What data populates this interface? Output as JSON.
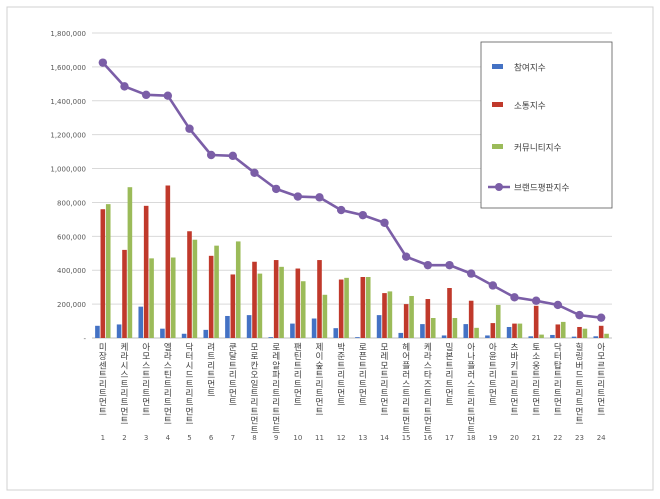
{
  "chart_data": {
    "type": "bar",
    "categories": [
      {
        "num": "1",
        "name": "미장센트리트먼트"
      },
      {
        "num": "2",
        "name": "케라시스트리트먼트"
      },
      {
        "num": "3",
        "name": "아모스트리트먼트"
      },
      {
        "num": "4",
        "name": "엘라스틴트리트먼트"
      },
      {
        "num": "5",
        "name": "닥터시드트리트먼트"
      },
      {
        "num": "6",
        "name": "려트리트먼트"
      },
      {
        "num": "7",
        "name": "쿤달트리트먼트"
      },
      {
        "num": "8",
        "name": "모로칸오일트리트먼트"
      },
      {
        "num": "9",
        "name": "로레알파리트리트먼트"
      },
      {
        "num": "10",
        "name": "팬틴트리트먼트"
      },
      {
        "num": "11",
        "name": "제이숲트리트먼트"
      },
      {
        "num": "12",
        "name": "박준트리트먼트"
      },
      {
        "num": "13",
        "name": "로픈트리트먼트"
      },
      {
        "num": "14",
        "name": "모레모트리트먼트"
      },
      {
        "num": "15",
        "name": "헤어플러스트리트먼트"
      },
      {
        "num": "16",
        "name": "케라스타즈트리트먼트"
      },
      {
        "num": "17",
        "name": "밀본트리트먼트"
      },
      {
        "num": "18",
        "name": "아나플러스트리트먼트"
      },
      {
        "num": "19",
        "name": "아윤트리트먼트"
      },
      {
        "num": "20",
        "name": "츠바키트리트먼트"
      },
      {
        "num": "21",
        "name": "토소웅트리트먼트"
      },
      {
        "num": "22",
        "name": "닥터탑트리트먼트"
      },
      {
        "num": "23",
        "name": "힐링버드트리트먼트"
      },
      {
        "num": "24",
        "name": "아모르트리트먼트"
      }
    ],
    "series": [
      {
        "name": "참여지수",
        "type": "bar",
        "color": "#4472c4",
        "values": [
          72000,
          80000,
          185000,
          55000,
          25000,
          48000,
          130000,
          135000,
          5000,
          85000,
          115000,
          58000,
          5000,
          135000,
          30000,
          82000,
          15000,
          82000,
          15000,
          65000,
          10000,
          18000,
          8000,
          10000
        ]
      },
      {
        "name": "소통지수",
        "type": "bar",
        "color": "#c0392b",
        "values": [
          760000,
          520000,
          780000,
          900000,
          630000,
          485000,
          375000,
          450000,
          460000,
          410000,
          460000,
          345000,
          360000,
          265000,
          200000,
          230000,
          295000,
          220000,
          88000,
          85000,
          190000,
          80000,
          65000,
          72000
        ]
      },
      {
        "name": "커뮤니티지수",
        "type": "bar",
        "color": "#9bbb59",
        "values": [
          790000,
          890000,
          470000,
          475000,
          580000,
          545000,
          570000,
          380000,
          420000,
          335000,
          255000,
          355000,
          360000,
          275000,
          248000,
          118000,
          118000,
          60000,
          195000,
          85000,
          20000,
          95000,
          55000,
          25000
        ]
      },
      {
        "name": "브랜드평판지수",
        "type": "line",
        "color": "#7b5ea7",
        "values": [
          1625000,
          1485000,
          1435000,
          1430000,
          1235000,
          1080000,
          1075000,
          975000,
          880000,
          835000,
          830000,
          755000,
          725000,
          680000,
          480000,
          430000,
          430000,
          380000,
          310000,
          240000,
          220000,
          195000,
          135000,
          120000
        ]
      }
    ],
    "y_ticks": [
      "-",
      "200,000",
      "400,000",
      "600,000",
      "800,000",
      "1,000,000",
      "1,200,000",
      "1,400,000",
      "1,600,000",
      "1,800,000"
    ],
    "ylim": [
      0,
      1800000
    ],
    "legend_position": "right",
    "grid": true
  }
}
